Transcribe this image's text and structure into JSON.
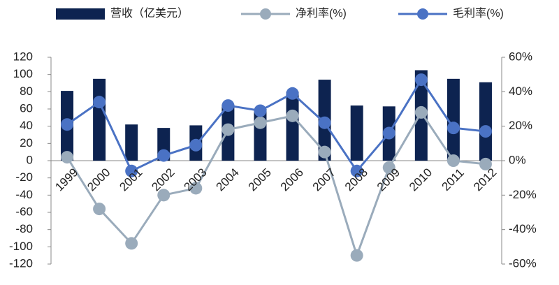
{
  "chart_data": {
    "type": "bar-line",
    "categories": [
      "1999",
      "2000",
      "2001",
      "2002",
      "2003",
      "2004",
      "2005",
      "2006",
      "2007",
      "2008",
      "2009",
      "2010",
      "2011",
      "2012"
    ],
    "series": [
      {
        "name": "营收（亿美元）",
        "type": "bar",
        "color": "#0d2350",
        "values": [
          81,
          95,
          42,
          38,
          41,
          65,
          60,
          80,
          94,
          64,
          63,
          105,
          95,
          91
        ]
      },
      {
        "name": "净利率(%)",
        "type": "line",
        "axis": "y2",
        "color": "#9aabbb",
        "values": [
          2,
          -28,
          -48,
          -20,
          -16,
          18,
          22,
          26,
          5,
          -55,
          -4,
          28,
          0,
          -2
        ]
      },
      {
        "name": "毛利率(%)",
        "type": "line",
        "axis": "y2",
        "color": "#4a72c4",
        "values": [
          21,
          34,
          -6,
          3,
          9,
          32,
          29,
          39,
          22,
          -6,
          16,
          47,
          19,
          17
        ]
      }
    ],
    "ylim": [
      -120,
      120
    ],
    "yticks": [
      -120,
      -100,
      -80,
      -60,
      -40,
      -20,
      0,
      20,
      40,
      60,
      80,
      100,
      120
    ],
    "y2lim": [
      -60,
      60
    ],
    "y2ticks": [
      {
        "value": -60,
        "label": "-60%"
      },
      {
        "value": -40,
        "label": "-40%"
      },
      {
        "value": -20,
        "label": "-20%"
      },
      {
        "value": 0,
        "label": "0%"
      },
      {
        "value": 20,
        "label": "20%"
      },
      {
        "value": 40,
        "label": "40%"
      },
      {
        "value": 60,
        "label": "60%"
      }
    ]
  }
}
